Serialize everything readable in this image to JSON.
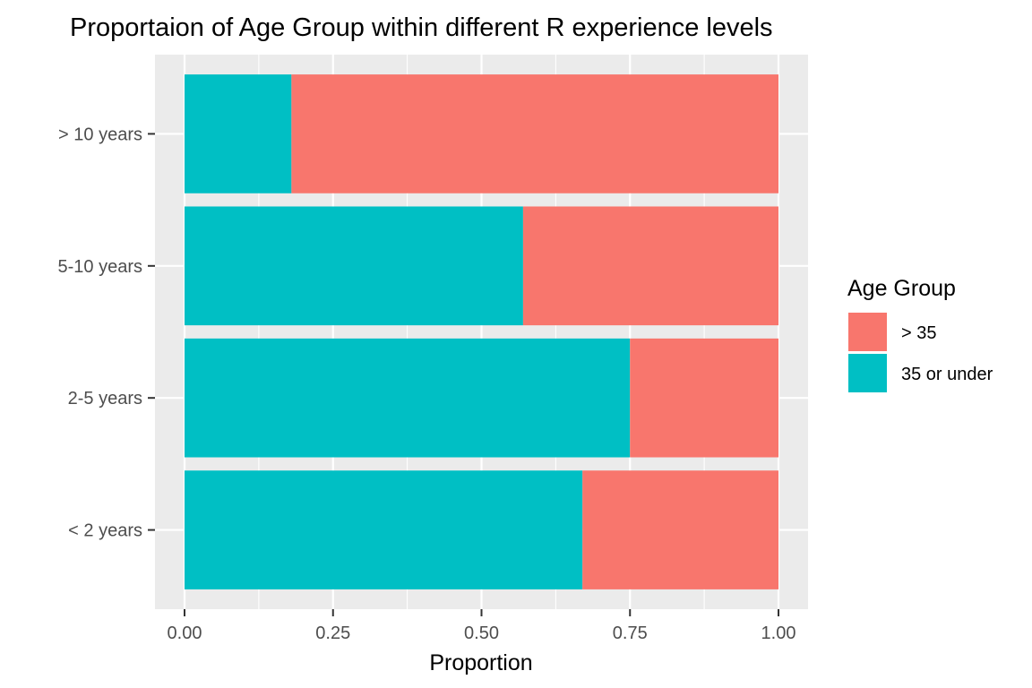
{
  "chart_data": {
    "type": "bar",
    "orientation": "horizontal",
    "stacked": true,
    "title": "Proportaion of Age Group within different R experience levels",
    "xlabel": "Proportion",
    "ylabel": "",
    "xlim": [
      0,
      1
    ],
    "x_ticks": [
      "0.00",
      "0.25",
      "0.50",
      "0.75",
      "1.00"
    ],
    "x_tick_values": [
      0,
      0.25,
      0.5,
      0.75,
      1.0
    ],
    "categories": [
      "> 10 years",
      "5-10 years",
      "2-5 years",
      "< 2 years"
    ],
    "series": [
      {
        "name": "35 or under",
        "color": "#00BFC4",
        "values": [
          0.18,
          0.57,
          0.75,
          0.67
        ]
      },
      {
        "name": "> 35",
        "color": "#F8766D",
        "values": [
          0.82,
          0.43,
          0.25,
          0.33
        ]
      }
    ],
    "legend": {
      "title": "Age Group",
      "position": "right",
      "entries": [
        {
          "label": "> 35",
          "color": "#F8766D"
        },
        {
          "label": "35 or under",
          "color": "#00BFC4"
        }
      ]
    },
    "grid": true,
    "panel_background": "#EBEBEB"
  }
}
